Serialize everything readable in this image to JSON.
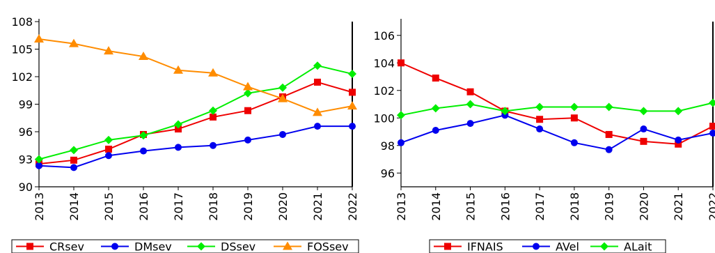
{
  "chart_data": [
    {
      "type": "line",
      "x": [
        "2013",
        "2014",
        "2015",
        "2016",
        "2017",
        "2018",
        "2019",
        "2020",
        "2021",
        "2022"
      ],
      "ylim": [
        90,
        108
      ],
      "yticks": [
        "90",
        "93",
        "96",
        "99",
        "102",
        "105",
        "108"
      ],
      "grid": false,
      "legend": "bottom",
      "series": [
        {
          "name": "CRsev",
          "color": "#ee0000",
          "marker": "square",
          "values": [
            92.5,
            92.9,
            94.1,
            95.7,
            96.3,
            97.6,
            98.3,
            99.8,
            101.4,
            100.3
          ]
        },
        {
          "name": "DMsev",
          "color": "#0000ee",
          "marker": "circle",
          "values": [
            92.3,
            92.1,
            93.4,
            93.9,
            94.3,
            94.5,
            95.1,
            95.7,
            96.6,
            96.6
          ]
        },
        {
          "name": "DSsev",
          "color": "#00ee00",
          "marker": "diamond",
          "values": [
            93.0,
            94.0,
            95.1,
            95.6,
            96.8,
            98.3,
            100.2,
            100.8,
            103.2,
            102.3
          ]
        },
        {
          "name": "FOSsev",
          "color": "#ff8c00",
          "marker": "triangle",
          "values": [
            106.1,
            105.6,
            104.8,
            104.2,
            102.7,
            102.4,
            100.9,
            99.6,
            98.1,
            98.8
          ]
        }
      ]
    },
    {
      "type": "line",
      "x": [
        "2013",
        "2014",
        "2015",
        "2016",
        "2017",
        "2018",
        "2019",
        "2020",
        "2021",
        "2022"
      ],
      "ylim": [
        95,
        107
      ],
      "yticks": [
        "96",
        "98",
        "100",
        "102",
        "104",
        "106"
      ],
      "grid": false,
      "legend": "bottom",
      "series": [
        {
          "name": "IFNAIS",
          "color": "#ee0000",
          "marker": "square",
          "values": [
            104.0,
            102.9,
            101.9,
            100.5,
            99.9,
            100.0,
            98.8,
            98.3,
            98.1,
            99.4
          ]
        },
        {
          "name": "AVel",
          "color": "#0000ee",
          "marker": "circle",
          "values": [
            98.2,
            99.1,
            99.6,
            100.2,
            99.2,
            98.2,
            97.7,
            99.2,
            98.4,
            98.9
          ]
        },
        {
          "name": "ALait",
          "color": "#00ee00",
          "marker": "diamond",
          "values": [
            100.2,
            100.7,
            101.0,
            100.5,
            100.8,
            100.8,
            100.8,
            100.5,
            100.5,
            101.1
          ]
        }
      ]
    }
  ]
}
